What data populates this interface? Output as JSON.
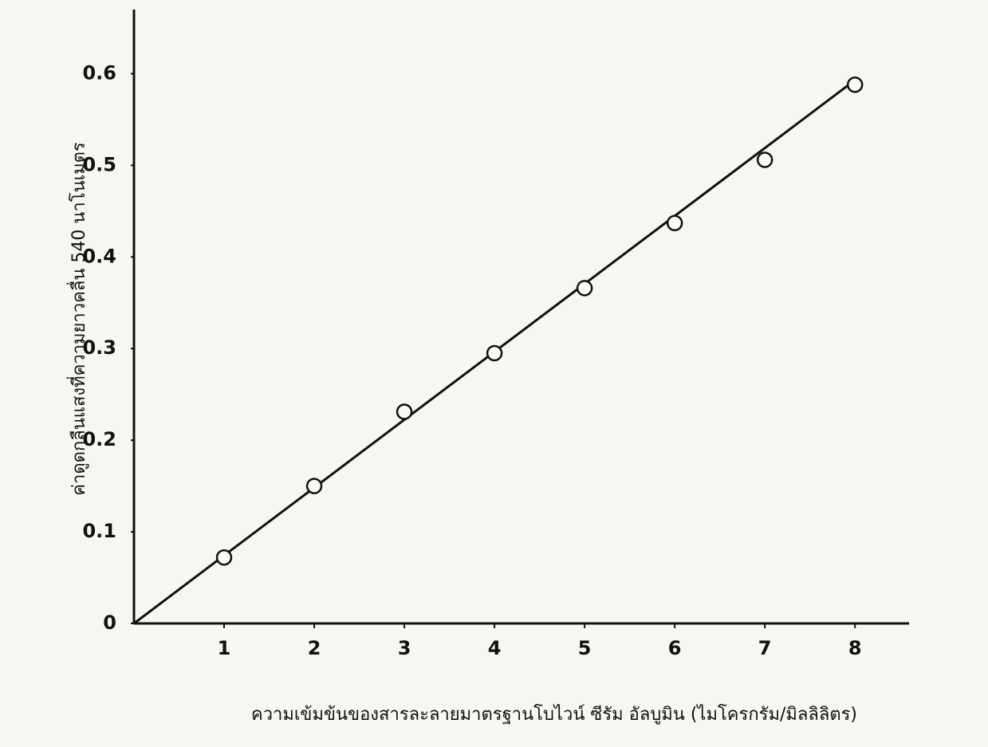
{
  "chart_data": {
    "type": "scatter",
    "x_label": "ความเข้มข้นของสารละลายมาตรฐานโบไวน์ ซีรัม อัลบูมิน  (ไมโครกรัม/มิลลิลิตร)",
    "y_label": "ค่าดูดกลืนแสงที่ความยาวคลื่น 540 นาโนเมตร",
    "xlim": [
      0,
      8.6
    ],
    "ylim": [
      0,
      0.67
    ],
    "xticks": [
      1,
      2,
      3,
      4,
      5,
      6,
      7,
      8
    ],
    "yticks": [
      0,
      0.1,
      0.2,
      0.3,
      0.4,
      0.5,
      0.6
    ],
    "grid": false,
    "series": [
      {
        "color": "#111111",
        "marker": "circle",
        "x": [
          1,
          2,
          3,
          4,
          5,
          6,
          7,
          8
        ],
        "values": [
          0.072,
          0.15,
          0.231,
          0.295,
          0.366,
          0.437,
          0.506,
          0.588
        ]
      },
      {
        "color": "#111111",
        "marker": "line",
        "x": [
          0,
          8
        ],
        "values": [
          0,
          0.593
        ]
      }
    ]
  }
}
